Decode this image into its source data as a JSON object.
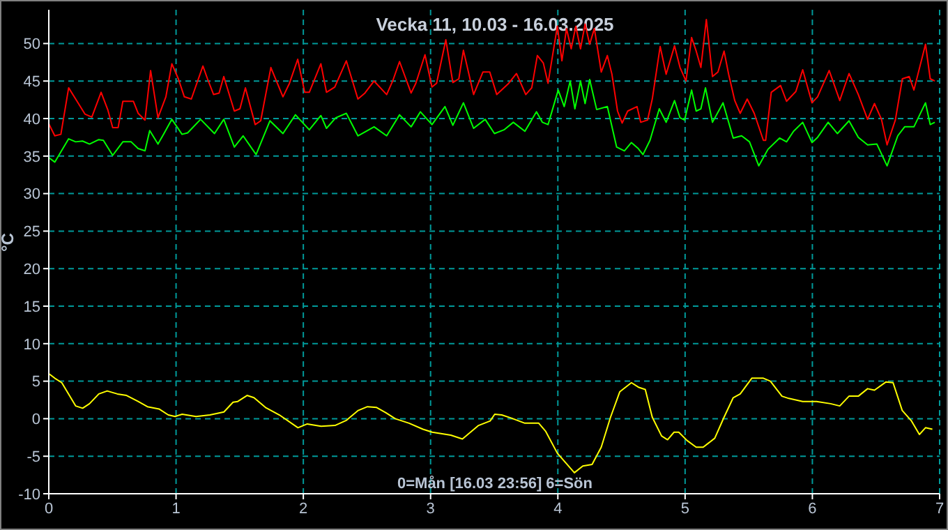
{
  "chart_data": {
    "type": "line",
    "title": "Vecka 11, 10.03 - 16.03.2025",
    "ylabel": "°C",
    "annotations": [
      "0=Mån [16.03 23:56] 6=Sön"
    ],
    "xlim": [
      0,
      7
    ],
    "xticks": [
      0,
      1,
      2,
      3,
      4,
      5,
      6,
      7
    ],
    "ylim": [
      -10,
      54.5
    ],
    "yticks": [
      -10,
      -5,
      0,
      5,
      10,
      15,
      20,
      25,
      30,
      35,
      40,
      45,
      50
    ],
    "grid": true,
    "marker": "none",
    "line_style": "solid",
    "series": [
      {
        "color": "#ff0000",
        "x": [
          0,
          0.047,
          0.095,
          0.156,
          0.211,
          0.284,
          0.338,
          0.411,
          0.465,
          0.502,
          0.545,
          0.582,
          0.665,
          0.702,
          0.756,
          0.8,
          0.858,
          0.92,
          0.967,
          1.018,
          1.065,
          1.12,
          1.211,
          1.247,
          1.295,
          1.338,
          1.375,
          1.458,
          1.502,
          1.545,
          1.622,
          1.665,
          1.745,
          1.84,
          1.891,
          1.956,
          2.011,
          2.047,
          2.138,
          2.182,
          2.247,
          2.338,
          2.429,
          2.484,
          2.556,
          2.655,
          2.702,
          2.756,
          2.847,
          2.884,
          2.956,
          3.011,
          3.047,
          3.12,
          3.175,
          3.222,
          3.258,
          3.338,
          3.411,
          3.465,
          3.52,
          3.614,
          3.675,
          3.748,
          3.795,
          3.839,
          3.886,
          3.923,
          3.996,
          4.032,
          4.068,
          4.105,
          4.141,
          4.178,
          4.214,
          4.25,
          4.287,
          4.341,
          4.389,
          4.425,
          4.469,
          4.505,
          4.549,
          4.622,
          4.651,
          4.705,
          4.742,
          4.804,
          4.851,
          4.917,
          4.96,
          5.007,
          5.051,
          5.087,
          5.124,
          5.167,
          5.215,
          5.258,
          5.306,
          5.342,
          5.39,
          5.433,
          5.488,
          5.543,
          5.615,
          5.633,
          5.677,
          5.75,
          5.797,
          5.87,
          5.924,
          5.997,
          6.041,
          6.132,
          6.215,
          6.288,
          6.361,
          6.434,
          6.488,
          6.543,
          6.587,
          6.652,
          6.707,
          6.761,
          6.798,
          6.889,
          6.926,
          6.962
        ],
        "values": [
          39.3,
          37.7,
          37.9,
          44.1,
          42.6,
          40.6,
          40.2,
          43.5,
          41.1,
          38.8,
          38.8,
          42.3,
          42.3,
          40.7,
          39.8,
          46.4,
          40.1,
          42.9,
          47.3,
          45.3,
          42.9,
          42.6,
          47,
          45.3,
          43.2,
          43.4,
          45.6,
          41,
          41.3,
          44.1,
          39.2,
          39.7,
          46.8,
          42.9,
          44.7,
          47.9,
          43.5,
          43.5,
          47.3,
          43.5,
          44.2,
          47.7,
          42.6,
          43.4,
          45,
          43.2,
          45,
          47.6,
          43.4,
          44.7,
          48.5,
          44.2,
          44.7,
          50.5,
          44.8,
          45.3,
          49.1,
          43.2,
          46.2,
          46.2,
          43.2,
          44.7,
          46,
          43.2,
          44.1,
          48.4,
          47.4,
          44.7,
          52.3,
          47.7,
          52,
          49.3,
          52.3,
          49.3,
          52.6,
          49.9,
          52,
          46.2,
          48.4,
          45.9,
          41,
          39.4,
          41,
          41.6,
          39.5,
          39.8,
          42.6,
          49.6,
          45.9,
          49.7,
          46.8,
          45,
          50.8,
          49,
          46.8,
          53.2,
          45.6,
          46.2,
          49,
          45.9,
          42.4,
          40.7,
          42.6,
          40.7,
          37.1,
          37.1,
          43.5,
          44.4,
          42.3,
          43.6,
          46.5,
          42.1,
          42.9,
          46.4,
          42.4,
          46,
          43.2,
          39.9,
          42,
          39.9,
          36.5,
          39.8,
          45.3,
          45.6,
          43.8,
          49.9,
          45.3,
          45
        ]
      },
      {
        "color": "#00ff00",
        "x": [
          0,
          0.047,
          0.156,
          0.211,
          0.265,
          0.32,
          0.393,
          0.429,
          0.502,
          0.582,
          0.647,
          0.702,
          0.756,
          0.793,
          0.858,
          0.902,
          0.967,
          1.047,
          1.091,
          1.193,
          1.302,
          1.375,
          1.458,
          1.527,
          1.629,
          1.738,
          1.84,
          1.938,
          2.047,
          2.138,
          2.182,
          2.255,
          2.338,
          2.429,
          2.556,
          2.655,
          2.756,
          2.847,
          2.92,
          3.011,
          3.113,
          3.175,
          3.258,
          3.338,
          3.429,
          3.502,
          3.577,
          3.65,
          3.741,
          3.832,
          3.879,
          3.923,
          4.003,
          4.05,
          4.097,
          4.134,
          4.178,
          4.214,
          4.25,
          4.305,
          4.389,
          4.462,
          4.523,
          4.578,
          4.632,
          4.669,
          4.724,
          4.797,
          4.851,
          4.917,
          4.96,
          4.996,
          5.051,
          5.087,
          5.124,
          5.16,
          5.215,
          5.298,
          5.378,
          5.444,
          5.506,
          5.579,
          5.651,
          5.742,
          5.797,
          5.852,
          5.924,
          5.997,
          6.041,
          6.124,
          6.197,
          6.288,
          6.361,
          6.434,
          6.507,
          6.587,
          6.671,
          6.725,
          6.798,
          6.889,
          6.926,
          6.962
        ],
        "values": [
          34.8,
          34.2,
          37.3,
          36.9,
          37,
          36.6,
          37.2,
          37.1,
          35.1,
          36.9,
          36.9,
          36,
          35.7,
          38.4,
          36.6,
          37.9,
          39.9,
          37.9,
          38.1,
          39.9,
          38,
          39.9,
          36.2,
          37.7,
          35.2,
          39.7,
          38,
          40.5,
          38.5,
          40.4,
          38.7,
          40.1,
          40.7,
          37.7,
          38.9,
          37.7,
          40.5,
          38.9,
          40.9,
          39.2,
          41.6,
          39.1,
          42.1,
          38.7,
          39.9,
          38,
          38.5,
          39.5,
          38.3,
          40.9,
          39.5,
          39.2,
          43.8,
          41.6,
          45,
          41.3,
          45,
          42,
          45.2,
          41.2,
          41.6,
          36.2,
          35.7,
          36.8,
          36,
          35.2,
          37.1,
          41.3,
          39.5,
          42.4,
          40.1,
          39.8,
          43.8,
          41,
          41.3,
          44.1,
          39.5,
          42.1,
          37.4,
          37.7,
          36.9,
          33.7,
          35.9,
          37.4,
          36.9,
          38.3,
          39.5,
          36.8,
          37.5,
          39.5,
          38,
          39.7,
          37.5,
          36.5,
          36.6,
          33.7,
          37.7,
          38.9,
          38.9,
          42.1,
          39.2,
          39.5
        ]
      },
      {
        "color": "#ffff00",
        "x": [
          0,
          0.047,
          0.102,
          0.211,
          0.266,
          0.32,
          0.393,
          0.459,
          0.539,
          0.611,
          0.702,
          0.775,
          0.866,
          0.939,
          0.993,
          1.048,
          1.157,
          1.266,
          1.376,
          1.448,
          1.485,
          1.558,
          1.612,
          1.703,
          1.812,
          1.958,
          2.031,
          2.14,
          2.249,
          2.34,
          2.431,
          2.504,
          2.576,
          2.649,
          2.722,
          2.831,
          2.94,
          3.013,
          3.159,
          3.25,
          3.377,
          3.468,
          3.504,
          3.559,
          3.632,
          3.741,
          3.85,
          3.905,
          3.996,
          4.13,
          4.196,
          4.269,
          4.341,
          4.414,
          4.487,
          4.578,
          4.633,
          4.687,
          4.742,
          4.815,
          4.862,
          4.913,
          4.95,
          5.015,
          5.087,
          5.142,
          5.233,
          5.306,
          5.378,
          5.433,
          5.524,
          5.615,
          5.67,
          5.761,
          5.815,
          5.924,
          6.033,
          6.143,
          6.215,
          6.288,
          6.361,
          6.434,
          6.488,
          6.579,
          6.634,
          6.706,
          6.779,
          6.841,
          6.889,
          6.943
        ],
        "values": [
          6,
          5.4,
          4.8,
          1.7,
          1.4,
          2,
          3.3,
          3.7,
          3.3,
          3.1,
          2.3,
          1.6,
          1.3,
          0.5,
          0.3,
          0.6,
          0.3,
          0.5,
          0.9,
          2.2,
          2.3,
          3.1,
          2.8,
          1.5,
          0.5,
          -1.2,
          -0.7,
          -1,
          -0.9,
          -0.2,
          1.1,
          1.6,
          1.5,
          0.8,
          0,
          -0.6,
          -1.4,
          -1.8,
          -2.2,
          -2.7,
          -0.9,
          -0.3,
          0.6,
          0.5,
          0.1,
          -0.6,
          -0.6,
          -1.7,
          -4.6,
          -7.2,
          -6.3,
          -6.1,
          -3.8,
          0.2,
          3.6,
          4.8,
          4.2,
          3.9,
          0.2,
          -2.3,
          -2.8,
          -1.8,
          -1.8,
          -2.9,
          -3.8,
          -3.8,
          -2.6,
          0.2,
          2.8,
          3.3,
          5.4,
          5.4,
          5,
          3,
          2.7,
          2.3,
          2.3,
          2,
          1.7,
          3,
          3,
          4,
          3.8,
          4.9,
          4.8,
          1.1,
          -0.3,
          -2.1,
          -1.2,
          -1.4
        ]
      }
    ]
  }
}
